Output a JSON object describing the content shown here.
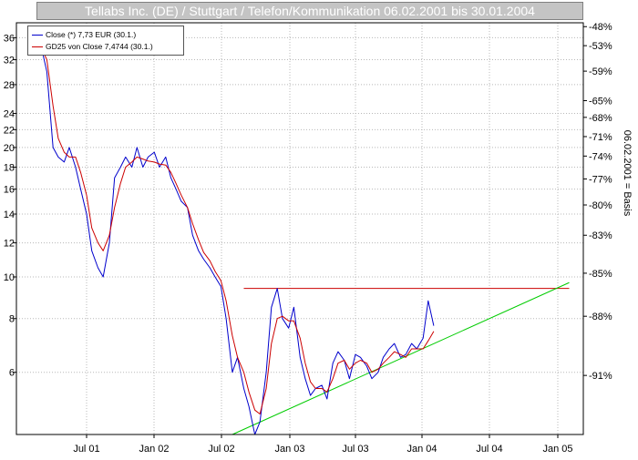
{
  "title": "Tellabs Inc. (DE) / Stuttgart / Telefon/Kommunikation 06.02.2001 bis 30.01.2004",
  "legend": [
    {
      "label": "Close (*) 7,73 EUR (30.1.)",
      "color": "#0000cc"
    },
    {
      "label": "GD25 von Close 7,4744 (30.1.)",
      "color": "#cc0000"
    }
  ],
  "chart_data": {
    "type": "line",
    "title": "Tellabs Inc. (DE) / Stuttgart / Telefon/Kommunikation 06.02.2001 bis 30.01.2004",
    "y_scale": "log",
    "ylim": [
      4.3,
      39
    ],
    "y_ticks": [
      6,
      8,
      10,
      12,
      14,
      16,
      18,
      20,
      22,
      24,
      28,
      32,
      36
    ],
    "y2_label": "06.02.2001 = Basis",
    "y2_ticks": [
      {
        "label": "-48%",
        "at": 38.2
      },
      {
        "label": "-53%",
        "at": 34.5
      },
      {
        "label": "-59%",
        "at": 30.1
      },
      {
        "label": "-65%",
        "at": 25.7
      },
      {
        "label": "-68%",
        "at": 23.5
      },
      {
        "label": "-71%",
        "at": 21.2
      },
      {
        "label": "-74%",
        "at": 19.1
      },
      {
        "label": "-77%",
        "at": 16.9
      },
      {
        "label": "-80%",
        "at": 14.7
      },
      {
        "label": "-83%",
        "at": 12.5
      },
      {
        "label": "-85%",
        "at": 10.2
      },
      {
        "label": "-88%",
        "at": 8.1
      },
      {
        "label": "-91%",
        "at": 5.9
      }
    ],
    "x_ticks": [
      "Jul 01",
      "Jan 02",
      "Jul 02",
      "Jan 03",
      "Jul 03",
      "Jan 04",
      "Jul 04",
      "Jan 05"
    ],
    "grid": true,
    "series": [
      {
        "name": "Close (*) 7,73 EUR (30.1.)",
        "color": "#0000cc",
        "x": [
          "2001-02-06",
          "2001-02-20",
          "2001-03-01",
          "2001-03-15",
          "2001-04-01",
          "2001-04-15",
          "2001-05-01",
          "2001-05-15",
          "2001-06-01",
          "2001-06-15",
          "2001-07-01",
          "2001-07-15",
          "2001-08-01",
          "2001-08-15",
          "2001-09-01",
          "2001-09-15",
          "2001-10-01",
          "2001-10-15",
          "2001-11-01",
          "2001-11-15",
          "2001-12-01",
          "2001-12-15",
          "2002-01-01",
          "2002-01-15",
          "2002-02-01",
          "2002-02-15",
          "2002-03-01",
          "2002-03-15",
          "2002-04-01",
          "2002-04-15",
          "2002-05-01",
          "2002-05-15",
          "2002-06-01",
          "2002-06-15",
          "2002-07-01",
          "2002-07-15",
          "2002-08-01",
          "2002-08-15",
          "2002-09-01",
          "2002-09-15",
          "2002-10-01",
          "2002-10-15",
          "2002-11-01",
          "2002-11-15",
          "2002-12-01",
          "2002-12-15",
          "2003-01-01",
          "2003-01-15",
          "2003-02-01",
          "2003-02-15",
          "2003-03-01",
          "2003-03-15",
          "2003-04-01",
          "2003-04-15",
          "2003-05-01",
          "2003-05-15",
          "2003-06-01",
          "2003-06-15",
          "2003-07-01",
          "2003-07-15",
          "2003-08-01",
          "2003-08-15",
          "2003-09-01",
          "2003-09-15",
          "2003-10-01",
          "2003-10-15",
          "2003-11-01",
          "2003-11-15",
          "2003-12-01",
          "2003-12-15",
          "2004-01-01",
          "2004-01-15",
          "2004-01-30"
        ],
        "values": [
          38,
          36,
          34,
          30,
          20,
          19,
          18.5,
          20,
          18,
          16,
          14,
          11.5,
          10.5,
          10,
          12,
          17,
          18,
          19,
          18,
          20,
          18,
          19,
          19.5,
          18,
          19,
          17,
          16,
          15,
          14.5,
          12.5,
          11.5,
          11,
          10.5,
          10,
          9.5,
          8,
          6,
          6.5,
          5.5,
          5,
          4.3,
          4.6,
          6,
          8.5,
          9.4,
          8,
          7.6,
          8.5,
          6.5,
          5.8,
          5.3,
          5.5,
          5.6,
          5.2,
          6.3,
          6.7,
          6.4,
          5.8,
          6.6,
          6.5,
          6.2,
          5.8,
          6,
          6.5,
          6.8,
          7,
          6.5,
          6.6,
          7,
          6.8,
          7.2,
          8.8,
          7.7
        ]
      },
      {
        "name": "GD25 von Close 7,4744 (30.1.)",
        "color": "#cc0000",
        "x": [
          "2001-02-06",
          "2001-02-20",
          "2001-03-01",
          "2001-03-15",
          "2001-04-01",
          "2001-04-15",
          "2001-05-01",
          "2001-05-15",
          "2001-06-01",
          "2001-06-15",
          "2001-07-01",
          "2001-07-15",
          "2001-08-01",
          "2001-08-15",
          "2001-09-01",
          "2001-09-15",
          "2001-10-01",
          "2001-10-15",
          "2001-11-01",
          "2001-11-15",
          "2001-12-01",
          "2001-12-15",
          "2002-01-01",
          "2002-01-15",
          "2002-02-01",
          "2002-02-15",
          "2002-03-01",
          "2002-03-15",
          "2002-04-01",
          "2002-04-15",
          "2002-05-01",
          "2002-05-15",
          "2002-06-01",
          "2002-06-15",
          "2002-07-01",
          "2002-07-15",
          "2002-08-01",
          "2002-08-15",
          "2002-09-01",
          "2002-09-15",
          "2002-10-01",
          "2002-10-15",
          "2002-11-01",
          "2002-11-15",
          "2002-12-01",
          "2002-12-15",
          "2003-01-01",
          "2003-01-15",
          "2003-02-01",
          "2003-02-15",
          "2003-03-01",
          "2003-03-15",
          "2003-04-01",
          "2003-04-15",
          "2003-05-01",
          "2003-05-15",
          "2003-06-01",
          "2003-06-15",
          "2003-07-01",
          "2003-07-15",
          "2003-08-01",
          "2003-08-15",
          "2003-09-01",
          "2003-09-15",
          "2003-10-01",
          "2003-10-15",
          "2003-11-01",
          "2003-11-15",
          "2003-12-01",
          "2003-12-15",
          "2004-01-01",
          "2004-01-15",
          "2004-01-30"
        ],
        "values": [
          37,
          35,
          34,
          32,
          25,
          21,
          19.5,
          19,
          19,
          17.5,
          15.5,
          13,
          12,
          11.5,
          12.5,
          14.5,
          16.5,
          18,
          18.5,
          19,
          18.8,
          18.6,
          18.5,
          18.3,
          18.2,
          17.5,
          16.5,
          15.5,
          14.5,
          13.3,
          12.2,
          11.4,
          10.9,
          10.3,
          9.8,
          8.8,
          7.3,
          6.5,
          6,
          5.4,
          4.9,
          4.8,
          5.5,
          7,
          8,
          8.1,
          7.9,
          7.9,
          7.2,
          6.3,
          5.7,
          5.5,
          5.5,
          5.4,
          5.8,
          6.3,
          6.4,
          6.1,
          6.3,
          6.4,
          6.3,
          6,
          6.1,
          6.3,
          6.5,
          6.7,
          6.6,
          6.5,
          6.8,
          6.8,
          6.8,
          7.1,
          7.47
        ]
      }
    ],
    "annotations": [
      {
        "type": "hline",
        "y": 9.4,
        "x_from": "2002-09-01",
        "x_to": "2005-02-01",
        "color": "#cc0000"
      },
      {
        "type": "trendline",
        "from": {
          "x": "2002-08-01",
          "y": 4.3
        },
        "to": {
          "x": "2005-02-01",
          "y": 9.7
        },
        "color": "#00cc00"
      }
    ]
  }
}
